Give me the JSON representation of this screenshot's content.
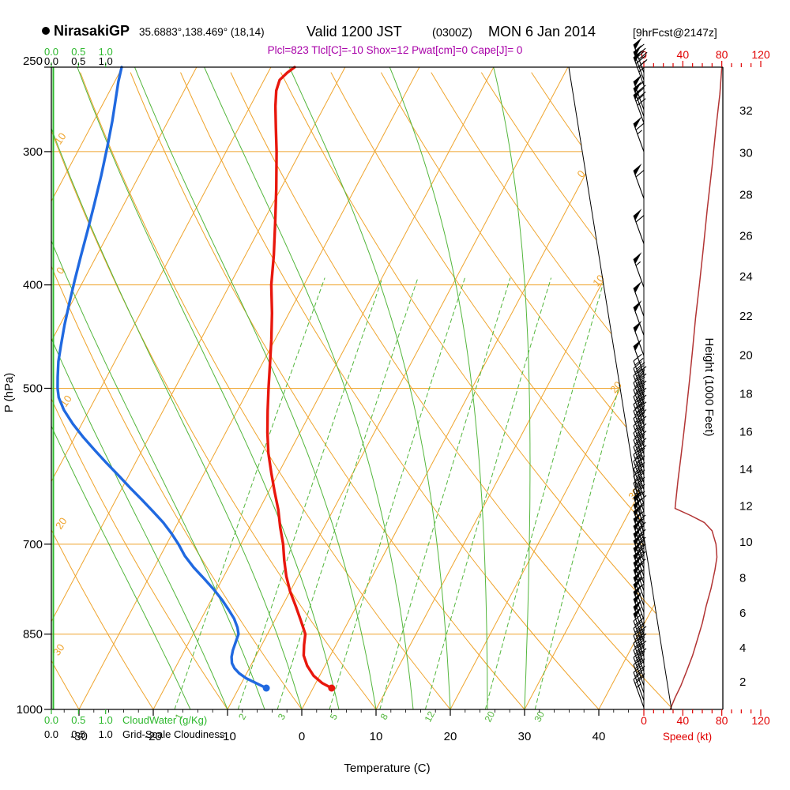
{
  "header": {
    "station": "NirasakiGP",
    "coords": "35.6883°,138.469° (18,14)",
    "valid_label": "Valid 1200 JST",
    "valid_zulu": "(0300Z)",
    "valid_date": "MON 6 Jan 2014",
    "forecast_tag": "[9hrFcst@2147z]",
    "indices": "Plcl=823 Tlcl[C]=-10 Shox=12 Pwat[cm]=0 Cape[J]= 0"
  },
  "colors": {
    "grid_orange": "#efa42d",
    "green": "#53b63c",
    "cloudwater_green": "#2db82d",
    "temp_red": "#e8170d",
    "dewpoint_blue": "#2069e0",
    "speed_curve_red": "#b23434",
    "speed_axis_red": "#e00000",
    "indices_magenta": "#a800a8",
    "frame_black": "#000000"
  },
  "chart_data": {
    "type": "line",
    "variant": "skew-t-log-p-sounding",
    "title": "NirasakiGP sounding Valid 1200 JST (0300Z) MON 6 Jan 2014 [9hrFcst@2147z]",
    "pressure_axis": {
      "label": "P (hPa)",
      "scale": "log",
      "range": [
        250,
        1000
      ],
      "ticks": [
        250,
        300,
        400,
        500,
        700,
        850,
        1000
      ]
    },
    "temperature_axis": {
      "label": "Temperature (C)",
      "ticks": [
        -30,
        -20,
        -10,
        0,
        10,
        20,
        30,
        40
      ],
      "skew": "isotherms slant right with height"
    },
    "height_axis": {
      "label": "Height (1000 Feet)",
      "ticks": [
        2,
        4,
        6,
        8,
        10,
        12,
        14,
        16,
        18,
        20,
        22,
        24,
        26,
        28,
        30,
        32
      ]
    },
    "speed_axis": {
      "label": "Speed (kt)",
      "ticks": [
        0,
        40,
        80,
        120
      ]
    },
    "cloudwater_axis": {
      "label": "CloudWater (g/Kg)",
      "ticks": [
        "0.0",
        "0.5",
        "1.0"
      ]
    },
    "cloudiness_axis": {
      "label": "Grid-Scale Cloudiness",
      "ticks": [
        "0.0",
        "0.5",
        "1.0"
      ]
    },
    "dry_adiabat_edge_labels": [
      "10",
      "0",
      "-10",
      "20",
      "30"
    ],
    "isotherm_edge_labels": [
      "0",
      "10",
      "20",
      "30"
    ],
    "mixing_ratio_values": [
      1,
      2,
      3,
      5,
      8,
      12,
      20,
      30
    ],
    "series": [
      {
        "name": "temperature_C",
        "color": "#e8170d",
        "points": [
          [
            955,
            2.5
          ],
          [
            945,
            0.9
          ],
          [
            930,
            -0.8
          ],
          [
            910,
            -2.4
          ],
          [
            890,
            -3.6
          ],
          [
            870,
            -4.3
          ],
          [
            850,
            -4.9
          ],
          [
            825,
            -6.5
          ],
          [
            800,
            -8.2
          ],
          [
            775,
            -10.0
          ],
          [
            750,
            -11.6
          ],
          [
            725,
            -13.0
          ],
          [
            700,
            -14.3
          ],
          [
            675,
            -15.9
          ],
          [
            650,
            -17.4
          ],
          [
            625,
            -19.2
          ],
          [
            600,
            -21.0
          ],
          [
            575,
            -22.8
          ],
          [
            550,
            -24.4
          ],
          [
            525,
            -25.9
          ],
          [
            500,
            -27.4
          ],
          [
            475,
            -28.9
          ],
          [
            450,
            -30.5
          ],
          [
            425,
            -32.3
          ],
          [
            400,
            -34.4
          ],
          [
            375,
            -36.2
          ],
          [
            350,
            -38.3
          ],
          [
            325,
            -40.6
          ],
          [
            300,
            -43.2
          ],
          [
            285,
            -45.0
          ],
          [
            272,
            -46.6
          ],
          [
            263,
            -47.6
          ],
          [
            257,
            -47.9
          ],
          [
            253,
            -47.4
          ],
          [
            250,
            -46.8
          ]
        ]
      },
      {
        "name": "dewpoint_C",
        "color": "#2069e0",
        "points": [
          [
            955,
            -6.3
          ],
          [
            945,
            -8.0
          ],
          [
            935,
            -9.7
          ],
          [
            925,
            -11.0
          ],
          [
            915,
            -12.0
          ],
          [
            905,
            -12.7
          ],
          [
            893,
            -13.2
          ],
          [
            880,
            -13.5
          ],
          [
            865,
            -13.7
          ],
          [
            850,
            -13.9
          ],
          [
            838,
            -14.5
          ],
          [
            822,
            -15.6
          ],
          [
            806,
            -17.0
          ],
          [
            790,
            -18.5
          ],
          [
            772,
            -20.4
          ],
          [
            754,
            -22.5
          ],
          [
            736,
            -24.7
          ],
          [
            718,
            -26.7
          ],
          [
            700,
            -28.4
          ],
          [
            684,
            -30.1
          ],
          [
            668,
            -32.0
          ],
          [
            652,
            -34.2
          ],
          [
            636,
            -36.5
          ],
          [
            620,
            -38.9
          ],
          [
            604,
            -41.3
          ],
          [
            588,
            -43.8
          ],
          [
            572,
            -46.3
          ],
          [
            556,
            -48.8
          ],
          [
            540,
            -51.2
          ],
          [
            524,
            -53.4
          ],
          [
            510,
            -55.0
          ],
          [
            500,
            -55.8
          ],
          [
            488,
            -56.6
          ],
          [
            472,
            -57.6
          ],
          [
            456,
            -58.4
          ],
          [
            436,
            -59.4
          ],
          [
            416,
            -60.3
          ],
          [
            396,
            -61.2
          ],
          [
            376,
            -62.1
          ],
          [
            356,
            -63.0
          ],
          [
            336,
            -64.0
          ],
          [
            316,
            -65.1
          ],
          [
            296,
            -66.4
          ],
          [
            281,
            -67.5
          ],
          [
            268,
            -68.6
          ],
          [
            258,
            -69.5
          ],
          [
            250,
            -70.1
          ]
        ]
      },
      {
        "name": "wind_speed_kt",
        "color": "#b23434",
        "points": [
          [
            250,
            80
          ],
          [
            265,
            78
          ],
          [
            285,
            74
          ],
          [
            310,
            70
          ],
          [
            340,
            65
          ],
          [
            370,
            61
          ],
          [
            400,
            57
          ],
          [
            430,
            53
          ],
          [
            460,
            50
          ],
          [
            490,
            47
          ],
          [
            520,
            44
          ],
          [
            550,
            41
          ],
          [
            580,
            38
          ],
          [
            610,
            35
          ],
          [
            635,
            33
          ],
          [
            648,
            32
          ],
          [
            658,
            48
          ],
          [
            668,
            62
          ],
          [
            680,
            70
          ],
          [
            700,
            74
          ],
          [
            720,
            75
          ],
          [
            740,
            73
          ],
          [
            770,
            69
          ],
          [
            800,
            64
          ],
          [
            830,
            60
          ],
          [
            860,
            55
          ],
          [
            890,
            50
          ],
          [
            920,
            44
          ],
          [
            950,
            38
          ],
          [
            975,
            32
          ],
          [
            1000,
            27
          ]
        ]
      },
      {
        "name": "cloud_water_gkg",
        "color": "#2db82d",
        "points": [
          [
            1000,
            0
          ],
          [
            250,
            0
          ]
        ]
      }
    ],
    "wind_barbs": {
      "direction_deg": 290,
      "levels": [
        [
          253,
          80
        ],
        [
          257,
          78
        ],
        [
          260,
          75
        ],
        [
          274,
          72
        ],
        [
          278,
          70
        ],
        [
          282,
          68
        ],
        [
          300,
          65
        ],
        [
          332,
          62
        ],
        [
          366,
          58
        ],
        [
          402,
          55
        ],
        [
          428,
          52
        ],
        [
          446,
          50
        ],
        [
          466,
          50
        ],
        [
          485,
          50
        ],
        [
          501,
          46
        ],
        [
          509,
          46
        ],
        [
          517,
          45
        ],
        [
          525,
          45
        ],
        [
          533,
          44
        ],
        [
          541,
          43
        ],
        [
          550,
          42
        ],
        [
          558,
          41
        ],
        [
          567,
          41
        ],
        [
          576,
          40
        ],
        [
          585,
          39
        ],
        [
          594,
          38
        ],
        [
          603,
          37
        ],
        [
          613,
          36
        ],
        [
          622,
          35
        ],
        [
          632,
          34
        ],
        [
          642,
          33
        ],
        [
          652,
          36
        ],
        [
          662,
          45
        ],
        [
          672,
          55
        ],
        [
          683,
          62
        ],
        [
          693,
          68
        ],
        [
          704,
          72
        ],
        [
          715,
          74
        ],
        [
          727,
          75
        ],
        [
          738,
          73
        ],
        [
          750,
          70
        ],
        [
          762,
          68
        ],
        [
          774,
          66
        ],
        [
          786,
          63
        ],
        [
          799,
          61
        ],
        [
          811,
          58
        ],
        [
          824,
          56
        ],
        [
          837,
          53
        ],
        [
          851,
          50
        ],
        [
          864,
          48
        ],
        [
          878,
          45
        ],
        [
          892,
          42
        ],
        [
          906,
          40
        ],
        [
          921,
          38
        ],
        [
          935,
          35
        ],
        [
          950,
          32
        ],
        [
          965,
          30
        ],
        [
          981,
          28
        ],
        [
          996,
          26
        ]
      ]
    }
  }
}
